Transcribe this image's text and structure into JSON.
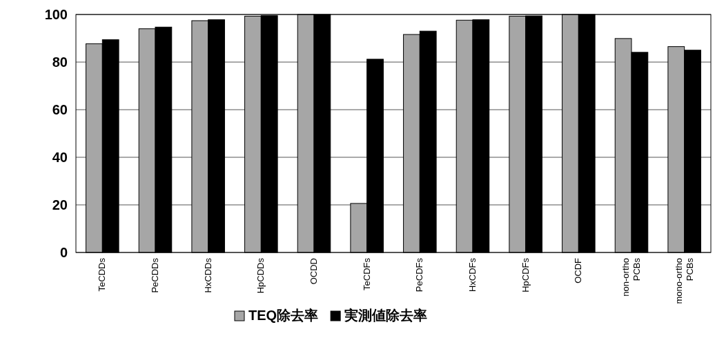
{
  "chart_data": {
    "type": "bar",
    "categories": [
      "TeCDDs",
      "PeCDDs",
      "HxCDDs",
      "HpCDDs",
      "OCDD",
      "TeCDFs",
      "PeCDFs",
      "HxCDFs",
      "HpCDFs",
      "OCDF",
      "non-ortho\nPCBs",
      "mono-ortho\nPCBs"
    ],
    "series": [
      {
        "name": "TEQ除去率",
        "color": "#a6a6a6",
        "values": [
          87.7,
          94.0,
          97.4,
          99.3,
          100,
          20.6,
          91.6,
          97.6,
          99.3,
          100,
          89.9,
          86.5
        ]
      },
      {
        "name": "実測値除去率",
        "color": "#000000",
        "values": [
          89.4,
          94.7,
          97.8,
          99.5,
          100,
          81.2,
          93.0,
          97.8,
          99.4,
          100,
          84.1,
          85.0
        ]
      }
    ],
    "ylim": [
      0,
      100
    ],
    "yticks": [
      0,
      20,
      40,
      60,
      80,
      100
    ],
    "grid": "y",
    "legend": "bottom"
  }
}
